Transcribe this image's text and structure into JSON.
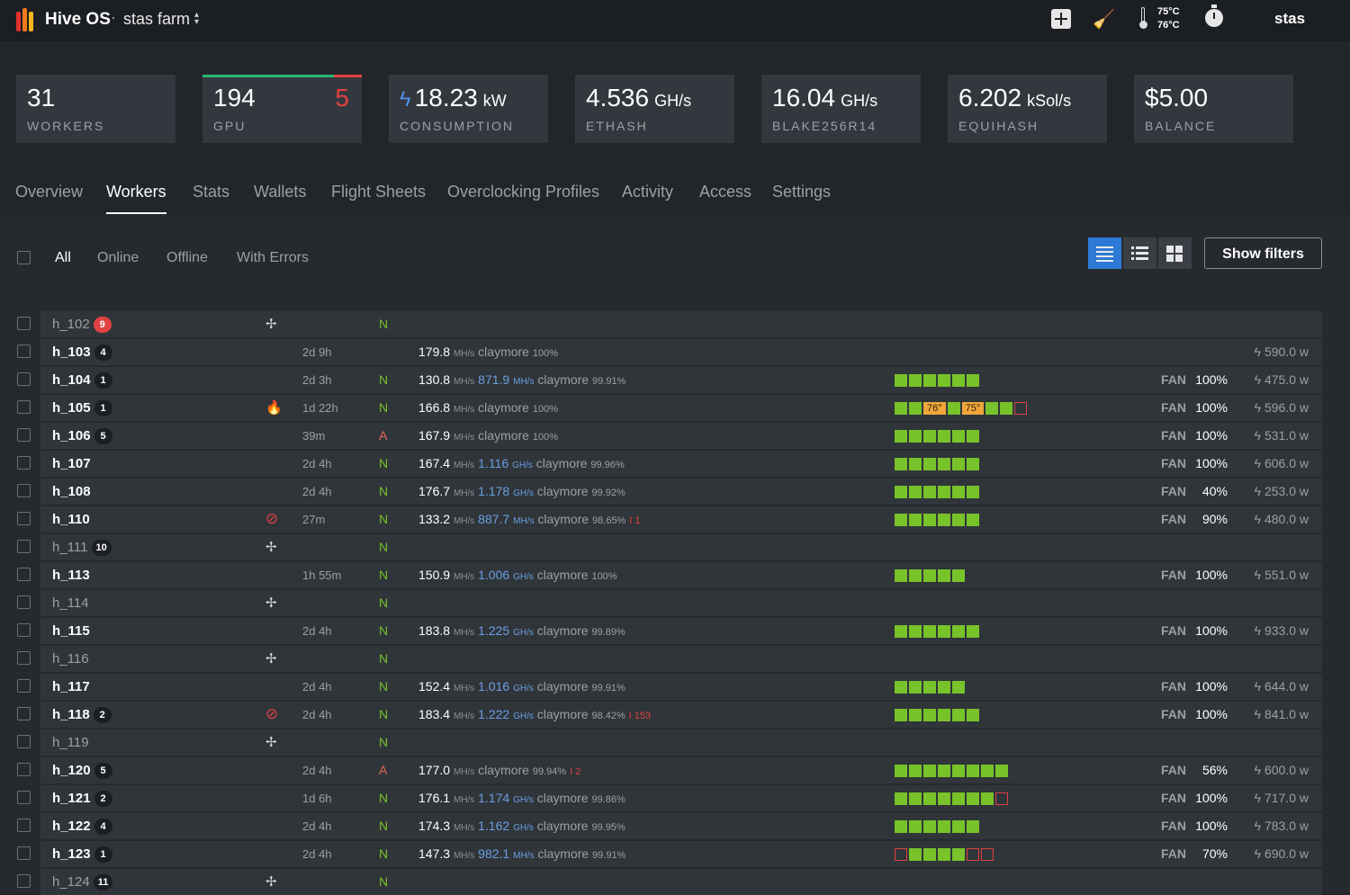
{
  "header": {
    "brand": "Hive OS",
    "separator": "·",
    "farm_name": "stas farm",
    "farm_caret": "⌃⌄",
    "temp_hi": "75°C",
    "temp_lo": "76°C",
    "user": "stas",
    "logo_colors": [
      "#e0332e",
      "#f27a1a",
      "#f5b51f"
    ]
  },
  "stats": {
    "workers": {
      "value": "31",
      "label": "WORKERS"
    },
    "gpu": {
      "value": "194",
      "errors": "5",
      "label": "GPU",
      "bar_ok_fraction": 0.82
    },
    "consumption": {
      "value": "18.23",
      "unit": "kW",
      "label": "CONSUMPTION"
    },
    "ethash": {
      "value": "4.536",
      "unit": "GH/s",
      "label": "ETHASH"
    },
    "blake": {
      "value": "16.04",
      "unit": "GH/s",
      "label": "BLAKE256R14"
    },
    "equihash": {
      "value": "6.202",
      "unit": "kSol/s",
      "label": "EQUIHASH"
    },
    "balance": {
      "value": "$5.00",
      "label": "BALANCE"
    }
  },
  "tabs": [
    "Overview",
    "Workers",
    "Stats",
    "Wallets",
    "Flight Sheets",
    "Overclocking Profiles",
    "Activity",
    "Access",
    "Settings"
  ],
  "active_tab": "Workers",
  "filters": [
    "All",
    "Online",
    "Offline",
    "With Errors"
  ],
  "active_filter": "All",
  "show_filters_label": "Show filters",
  "units": {
    "mhs": "MH/s",
    "fan": "FAN",
    "bolt": "ϟ"
  },
  "colors": {
    "accent": "#2d7ad6",
    "ok": "#78c22a",
    "error": "#e04141",
    "warm": "#f1a73a",
    "net_ok": "#78c22a",
    "net_alt": "#e26a5a"
  },
  "workers": [
    {
      "name": "h_102",
      "badge": "9",
      "badge_red": true,
      "offline": true,
      "status": "fan",
      "uptime": "",
      "net": "N"
    },
    {
      "name": "h_103",
      "badge": "4",
      "uptime": "2d 9h",
      "net": "",
      "hash": "179.8",
      "miner": "claymore",
      "pct": "100%",
      "power": "590.0 w"
    },
    {
      "name": "h_104",
      "badge": "1",
      "uptime": "2d 3h",
      "net": "N",
      "hash": "130.8",
      "hash2": "871.9",
      "hash2_unit": "MH/s",
      "miner": "claymore",
      "pct": "99.91%",
      "gpus": "oooooo",
      "fan": "100%",
      "power": "475.0 w"
    },
    {
      "name": "h_105",
      "badge": "1",
      "status": "fire",
      "uptime": "1d 22h",
      "net": "N",
      "hash": "166.8",
      "miner": "claymore",
      "pct": "100%",
      "gpus": "oo76o75oox",
      "temps": [
        "76°",
        "75°"
      ],
      "fan": "100%",
      "power": "596.0 w"
    },
    {
      "name": "h_106",
      "badge": "5",
      "uptime": "39m",
      "net": "A",
      "hash": "167.9",
      "miner": "claymore",
      "pct": "100%",
      "gpus": "oooooo",
      "fan": "100%",
      "power": "531.0 w"
    },
    {
      "name": "h_107",
      "uptime": "2d 4h",
      "net": "N",
      "hash": "167.4",
      "hash2": "1.116",
      "hash2_unit": "GH/s",
      "miner": "claymore",
      "pct": "99.96%",
      "gpus": "oooooo",
      "fan": "100%",
      "power": "606.0 w"
    },
    {
      "name": "h_108",
      "uptime": "2d 4h",
      "net": "N",
      "hash": "176.7",
      "hash2": "1.178",
      "hash2_unit": "GH/s",
      "miner": "claymore",
      "pct": "99.92%",
      "gpus": "oooooo",
      "fan": "40%",
      "power": "253.0 w"
    },
    {
      "name": "h_110",
      "status": "ban",
      "uptime": "27m",
      "net": "N",
      "hash": "133.2",
      "hash2": "887.7",
      "hash2_unit": "MH/s",
      "miner": "claymore",
      "pct": "98.65%",
      "errs": "I 1",
      "gpus": "oooooo",
      "fan": "90%",
      "power": "480.0 w"
    },
    {
      "name": "h_111",
      "badge": "10",
      "offline": true,
      "status": "fan",
      "uptime": "",
      "net": "N"
    },
    {
      "name": "h_113",
      "uptime": "1h 55m",
      "net": "N",
      "hash": "150.9",
      "hash2": "1.006",
      "hash2_unit": "GH/s",
      "miner": "claymore",
      "pct": "100%",
      "gpus": "ooooo",
      "fan": "100%",
      "power": "551.0 w"
    },
    {
      "name": "h_114",
      "offline": true,
      "status": "fan",
      "uptime": "",
      "net": "N"
    },
    {
      "name": "h_115",
      "uptime": "2d 4h",
      "net": "N",
      "hash": "183.8",
      "hash2": "1.225",
      "hash2_unit": "GH/s",
      "miner": "claymore",
      "pct": "99.89%",
      "gpus": "oooooo",
      "fan": "100%",
      "power": "933.0 w"
    },
    {
      "name": "h_116",
      "offline": true,
      "status": "fan",
      "uptime": "",
      "net": "N"
    },
    {
      "name": "h_117",
      "uptime": "2d 4h",
      "net": "N",
      "hash": "152.4",
      "hash2": "1.016",
      "hash2_unit": "GH/s",
      "miner": "claymore",
      "pct": "99.91%",
      "gpus": "ooooo",
      "fan": "100%",
      "power": "644.0 w"
    },
    {
      "name": "h_118",
      "badge": "2",
      "status": "ban",
      "uptime": "2d 4h",
      "net": "N",
      "hash": "183.4",
      "hash2": "1.222",
      "hash2_unit": "GH/s",
      "miner": "claymore",
      "pct": "98.42%",
      "errs": "I 153",
      "gpus": "oooooo",
      "fan": "100%",
      "power": "841.0 w"
    },
    {
      "name": "h_119",
      "offline": true,
      "status": "fan",
      "uptime": "",
      "net": "N"
    },
    {
      "name": "h_120",
      "badge": "5",
      "uptime": "2d 4h",
      "net": "A",
      "hash": "177.0",
      "miner": "claymore",
      "pct": "99.94%",
      "errs": "I 2",
      "gpus": "oooooooo",
      "fan": "56%",
      "power": "600.0 w"
    },
    {
      "name": "h_121",
      "badge": "2",
      "uptime": "1d 6h",
      "net": "N",
      "hash": "176.1",
      "hash2": "1.174",
      "hash2_unit": "GH/s",
      "miner": "claymore",
      "pct": "99.86%",
      "gpus": "ooooooox",
      "fan": "100%",
      "power": "717.0 w"
    },
    {
      "name": "h_122",
      "badge": "4",
      "uptime": "2d 4h",
      "net": "N",
      "hash": "174.3",
      "hash2": "1.162",
      "hash2_unit": "GH/s",
      "miner": "claymore",
      "pct": "99.95%",
      "gpus": "oooooo",
      "fan": "100%",
      "power": "783.0 w"
    },
    {
      "name": "h_123",
      "badge": "1",
      "uptime": "2d 4h",
      "net": "N",
      "hash": "147.3",
      "hash2": "982.1",
      "hash2_unit": "MH/s",
      "miner": "claymore",
      "pct": "99.91%",
      "gpus": "xooooxx",
      "fan": "70%",
      "power": "690.0 w"
    },
    {
      "name": "h_124",
      "badge": "11",
      "offline": true,
      "status": "fan",
      "uptime": "",
      "net": "N"
    }
  ]
}
